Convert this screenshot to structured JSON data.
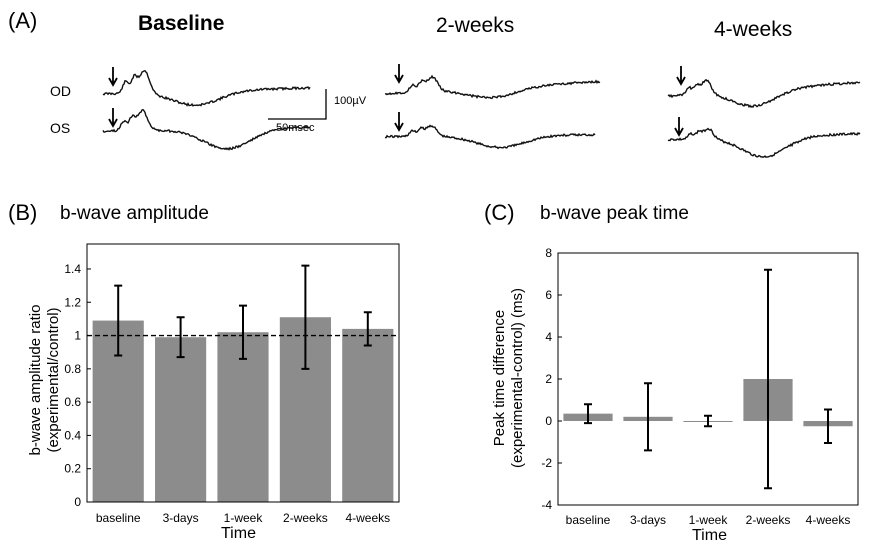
{
  "panel_a": {
    "label": "(A)",
    "titles": [
      "Baseline",
      "2-weeks",
      "4-weeks"
    ],
    "rows": [
      "OD",
      "OS"
    ],
    "scale_time": "50msec",
    "scale_amp": "100µV"
  },
  "chart_data": [
    {
      "type": "bar",
      "panel_label": "(B)",
      "title": "b-wave amplitude",
      "xlabel": "Time",
      "ylabel": [
        "b-wave amplitude ratio",
        "(experimental/control)"
      ],
      "categories": [
        "baseline",
        "3-days",
        "1-week",
        "2-weeks",
        "4-weeks"
      ],
      "values": [
        1.09,
        0.99,
        1.02,
        1.11,
        1.04
      ],
      "error": [
        0.21,
        0.12,
        0.16,
        0.31,
        0.1
      ],
      "ylim": [
        0,
        1.55
      ],
      "yticks": [
        "0",
        "0.2",
        "0.4",
        "0.6",
        "0.8",
        "1",
        "1.2",
        "1.4"
      ],
      "reference_line": 1,
      "bar_color": "#8c8c8c",
      "grid": false
    },
    {
      "type": "bar",
      "panel_label": "(C)",
      "title": "b-wave peak time",
      "xlabel": "Time",
      "ylabel": [
        "Peak time difference",
        "(experimental-control) (ms)"
      ],
      "categories": [
        "baseline",
        "3-days",
        "1-week",
        "2-weeks",
        "4-weeks"
      ],
      "values": [
        0.35,
        0.2,
        0.0,
        2.0,
        -0.25
      ],
      "error": [
        0.45,
        1.6,
        0.25,
        5.2,
        0.8
      ],
      "ylim": [
        -4,
        8
      ],
      "yticks": [
        "-4",
        "-2",
        "0",
        "2",
        "4",
        "6",
        "8"
      ],
      "bar_color": "#8c8c8c",
      "grid": false
    }
  ]
}
